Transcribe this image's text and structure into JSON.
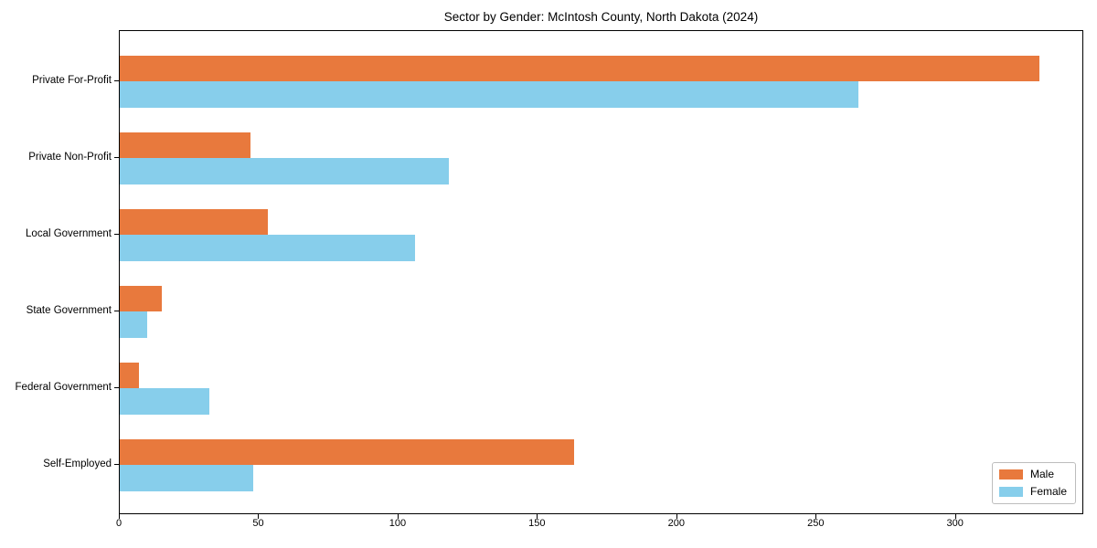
{
  "figure": {
    "background": "#ffffff",
    "frame_color": "#000000"
  },
  "chart_data": {
    "type": "bar",
    "orientation": "horizontal",
    "title": "Sector by Gender: McIntosh County, North Dakota (2024)",
    "categories": [
      "Private For-Profit",
      "Private Non-Profit",
      "Local Government",
      "State Government",
      "Federal Government",
      "Self-Employed"
    ],
    "series": [
      {
        "name": "Male",
        "color": "#e8793d",
        "values": [
          330,
          47,
          53,
          15,
          7,
          163
        ]
      },
      {
        "name": "Female",
        "color": "#87ceeb",
        "values": [
          265,
          118,
          106,
          10,
          32,
          48
        ]
      }
    ],
    "xlabel": "",
    "ylabel": "",
    "xlim": [
      0,
      346
    ],
    "xticks": [
      0,
      50,
      100,
      150,
      200,
      250,
      300
    ],
    "grid": false,
    "legend_position": "lower right"
  }
}
